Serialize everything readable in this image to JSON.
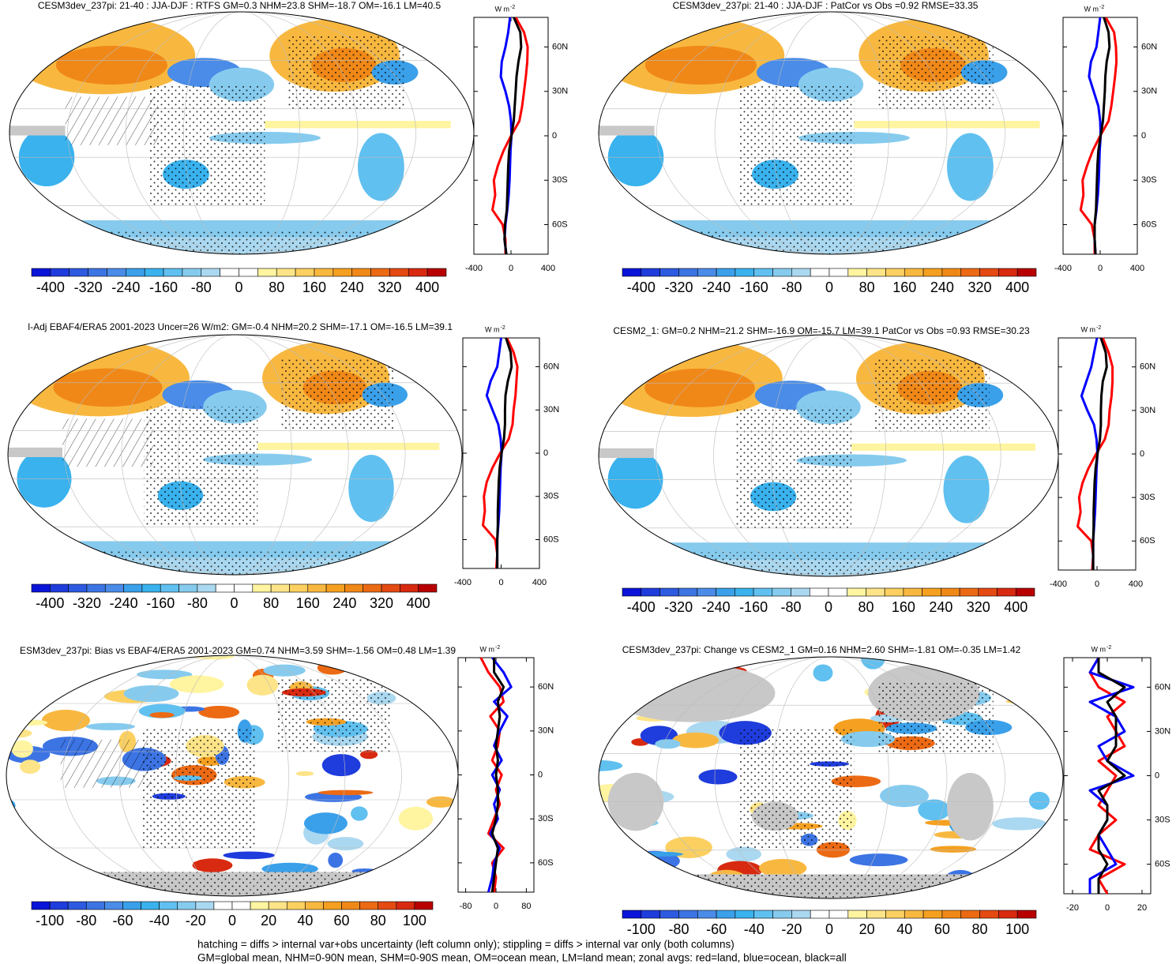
{
  "palette": [
    "#0a14d8",
    "#1f3cdc",
    "#2d5ae0",
    "#3c74e4",
    "#4a8ce8",
    "#3aa0ea",
    "#39b2ee",
    "#60c0f0",
    "#86cbee",
    "#aad8f0",
    "#ffffff",
    "#ffffff",
    "#fff4a0",
    "#fde488",
    "#fbd060",
    "#f8b840",
    "#f5a020",
    "#f08818",
    "#ec6a14",
    "#e44a12",
    "#d82a10",
    "#b80000"
  ],
  "chart_data": [
    {
      "type": "mapzonal",
      "title": "CESM3dev_237pi: 21-40 : JJA-DJF : RTFS GM=0.3 NHM=23.8 SHM=-18.7 OM=-16.1 LM=40.5",
      "units": "W m",
      "units_exp": "-2",
      "lat": [
        -80,
        -70,
        -60,
        -50,
        -40,
        -30,
        -20,
        -10,
        0,
        10,
        20,
        30,
        40,
        50,
        60,
        70,
        80
      ],
      "series": [
        {
          "color": "#ff0000",
          "values": [
            -60,
            -60,
            -90,
            -200,
            -170,
            -185,
            -140,
            -80,
            0,
            90,
            120,
            140,
            160,
            175,
            180,
            140,
            50
          ]
        },
        {
          "color": "#0000ff",
          "values": [
            -50,
            -70,
            -60,
            -40,
            -25,
            -15,
            -10,
            -5,
            5,
            0,
            -20,
            -60,
            -110,
            -100,
            -60,
            -30,
            -10
          ]
        },
        {
          "color": "#000000",
          "values": [
            -50,
            -70,
            -65,
            -45,
            -40,
            -35,
            -30,
            -20,
            5,
            30,
            40,
            50,
            60,
            80,
            110,
            100,
            30
          ]
        }
      ],
      "xlim": [
        -400,
        400
      ],
      "xticks": [
        -400,
        0,
        400
      ],
      "ylim": [
        -80,
        80
      ],
      "yticks": [
        {
          "value": 60,
          "label": "60N"
        },
        {
          "value": 30,
          "label": "30N"
        },
        0,
        {
          "value": -30,
          "label": "30S"
        },
        {
          "value": -60,
          "label": "60S"
        }
      ],
      "colorbar_ticks": [
        -400,
        -320,
        -240,
        -160,
        -80,
        0,
        80,
        160,
        240,
        320,
        400
      ]
    },
    {
      "type": "mapzonal",
      "title": "CESM3dev_237pi: 21-40 : JJA-DJF : PatCor vs Obs =0.92 RMSE=33.35",
      "units": "W m",
      "units_exp": "-2",
      "lat": [
        -80,
        -70,
        -60,
        -50,
        -40,
        -30,
        -20,
        -10,
        0,
        10,
        20,
        30,
        40,
        50,
        60,
        70,
        80
      ],
      "series": [
        {
          "color": "#ff0000",
          "values": [
            -60,
            -60,
            -90,
            -210,
            -180,
            -190,
            -140,
            -80,
            0,
            90,
            120,
            140,
            160,
            175,
            170,
            150,
            60
          ]
        },
        {
          "color": "#0000ff",
          "values": [
            -50,
            -60,
            -60,
            -40,
            -25,
            -15,
            -10,
            -5,
            5,
            0,
            -20,
            -70,
            -120,
            -100,
            -40,
            -20,
            0
          ]
        },
        {
          "color": "#000000",
          "values": [
            -50,
            -60,
            -60,
            -45,
            -40,
            -35,
            -30,
            -20,
            5,
            30,
            40,
            50,
            55,
            70,
            100,
            90,
            40
          ]
        }
      ],
      "xlim": [
        -400,
        400
      ],
      "xticks": [
        -400,
        0,
        400
      ],
      "ylim": [
        -80,
        80
      ],
      "yticks": [
        {
          "value": 60,
          "label": "60N"
        },
        {
          "value": 30,
          "label": "30N"
        },
        0,
        {
          "value": -30,
          "label": "30S"
        },
        {
          "value": -60,
          "label": "60S"
        }
      ],
      "colorbar_ticks": [
        -400,
        -320,
        -240,
        -160,
        -80,
        0,
        80,
        160,
        240,
        320,
        400
      ]
    },
    {
      "type": "mapzonal",
      "title": "l-Adj EBAF4/ERA5 2001-2023 Uncer=26 W/m2: GM=-0.4 NHM=20.2 SHM=-17.1 OM=-16.5 LM=39.1",
      "units": "W m",
      "units_exp": "-2",
      "lat": [
        -80,
        -70,
        -60,
        -50,
        -40,
        -30,
        -20,
        -10,
        0,
        10,
        20,
        30,
        40,
        50,
        60,
        70,
        80
      ],
      "series": [
        {
          "color": "#ff0000",
          "values": [
            -50,
            -40,
            -60,
            -190,
            -170,
            -180,
            -150,
            -90,
            -10,
            80,
            120,
            130,
            150,
            160,
            170,
            130,
            60
          ]
        },
        {
          "color": "#0000ff",
          "values": [
            -40,
            -40,
            -40,
            -30,
            -20,
            -15,
            -10,
            -5,
            5,
            -5,
            -30,
            -90,
            -150,
            -110,
            -40,
            -20,
            0
          ]
        },
        {
          "color": "#000000",
          "values": [
            -40,
            -40,
            -40,
            -35,
            -35,
            -30,
            -25,
            -15,
            5,
            30,
            40,
            40,
            45,
            70,
            110,
            100,
            50
          ]
        }
      ],
      "xlim": [
        -400,
        400
      ],
      "xticks": [
        -400,
        0,
        400
      ],
      "ylim": [
        -80,
        80
      ],
      "yticks": [
        {
          "value": 60,
          "label": "60N"
        },
        {
          "value": 30,
          "label": "30N"
        },
        0,
        {
          "value": -30,
          "label": "30S"
        },
        {
          "value": -60,
          "label": "60S"
        }
      ],
      "colorbar_ticks": [
        -400,
        -320,
        -240,
        -160,
        -80,
        0,
        80,
        160,
        240,
        320,
        400
      ]
    },
    {
      "type": "mapzonal",
      "title": "CESM2_1: GM=0.2 NHM=21.2 SHM=-16.9 OM=-15.7 LM=39.1 PatCor vs Obs =0.93 RMSE=30.23",
      "units": "W m",
      "units_exp": "-2",
      "lat": [
        -80,
        -70,
        -60,
        -50,
        -40,
        -30,
        -20,
        -10,
        0,
        10,
        20,
        30,
        40,
        50,
        60,
        70,
        80
      ],
      "series": [
        {
          "color": "#ff0000",
          "values": [
            -50,
            -40,
            -60,
            -200,
            -170,
            -185,
            -150,
            -90,
            -10,
            80,
            120,
            130,
            150,
            160,
            160,
            120,
            60
          ]
        },
        {
          "color": "#0000ff",
          "values": [
            -40,
            -40,
            -40,
            -30,
            -20,
            -15,
            -10,
            -5,
            5,
            -5,
            -30,
            -100,
            -160,
            -110,
            -60,
            -30,
            0
          ]
        },
        {
          "color": "#000000",
          "values": [
            -40,
            -40,
            -40,
            -35,
            -35,
            -30,
            -25,
            -15,
            5,
            30,
            40,
            40,
            45,
            60,
            100,
            90,
            40
          ]
        }
      ],
      "xlim": [
        -400,
        400
      ],
      "xticks": [
        -400,
        0,
        400
      ],
      "ylim": [
        -80,
        80
      ],
      "yticks": [
        {
          "value": 60,
          "label": "60N"
        },
        {
          "value": 30,
          "label": "30N"
        },
        0,
        {
          "value": -30,
          "label": "30S"
        },
        {
          "value": -60,
          "label": "60S"
        }
      ],
      "colorbar_ticks": [
        -400,
        -320,
        -240,
        -160,
        -80,
        0,
        80,
        160,
        240,
        320,
        400
      ]
    },
    {
      "type": "mapzonal",
      "title": "ESM3dev_237pi: Bias vs EBAF4/ERA5 2001-2023 GM=0.74 NHM=3.59 SHM=-1.56 OM=0.48 LM=1.39",
      "units": "W m",
      "units_exp": "-2",
      "lat": [
        -80,
        -70,
        -60,
        -50,
        -40,
        -30,
        -20,
        -10,
        0,
        10,
        20,
        30,
        40,
        50,
        60,
        70,
        80
      ],
      "series": [
        {
          "color": "#ff0000",
          "values": [
            -5,
            0,
            -10,
            20,
            -20,
            -5,
            10,
            0,
            15,
            -10,
            5,
            10,
            -15,
            20,
            10,
            -20,
            -40
          ]
        },
        {
          "color": "#0000ff",
          "values": [
            -20,
            -10,
            -5,
            10,
            -15,
            5,
            -5,
            10,
            -10,
            15,
            -5,
            10,
            30,
            -5,
            40,
            20,
            -10
          ]
        },
        {
          "color": "#000000",
          "values": [
            -10,
            -5,
            0,
            5,
            -10,
            0,
            5,
            5,
            0,
            5,
            0,
            5,
            10,
            5,
            20,
            -5,
            -5
          ]
        }
      ],
      "xlim": [
        -100,
        100
      ],
      "xticks": [
        -80,
        0,
        80
      ],
      "ylim": [
        -80,
        80
      ],
      "yticks": [
        {
          "value": 60,
          "label": "60N"
        },
        {
          "value": 30,
          "label": "30N"
        },
        0,
        {
          "value": -30,
          "label": "30S"
        },
        {
          "value": -60,
          "label": "60S"
        }
      ],
      "colorbar_ticks": [
        -100,
        -80,
        -60,
        -40,
        -20,
        0,
        20,
        40,
        60,
        80,
        100
      ]
    },
    {
      "type": "mapzonal",
      "title": "CESM3dev_237pi: Change vs CESM2_1 GM=0.16 NHM=2.60 SHM=-1.81 OM=-0.35 LM=1.42",
      "units": "W m",
      "units_exp": "-2",
      "lat": [
        -80,
        -70,
        -60,
        -50,
        -40,
        -30,
        -20,
        -10,
        0,
        10,
        20,
        30,
        40,
        50,
        60,
        70,
        80
      ],
      "series": [
        {
          "color": "#ff0000",
          "values": [
            0,
            -5,
            10,
            -10,
            -5,
            5,
            -5,
            0,
            5,
            -5,
            10,
            5,
            0,
            10,
            -5,
            -10,
            -5
          ]
        },
        {
          "color": "#0000ff",
          "values": [
            -10,
            -10,
            5,
            0,
            -5,
            0,
            0,
            -10,
            15,
            0,
            -5,
            10,
            5,
            -10,
            15,
            -10,
            -5
          ]
        },
        {
          "color": "#000000",
          "values": [
            -5,
            -5,
            0,
            -5,
            -5,
            0,
            0,
            -5,
            10,
            0,
            5,
            5,
            5,
            0,
            10,
            -5,
            -5
          ]
        }
      ],
      "xlim": [
        -25,
        25
      ],
      "xticks": [
        -20,
        0,
        20
      ],
      "ylim": [
        -80,
        80
      ],
      "yticks": [
        {
          "value": 60,
          "label": "60N"
        },
        {
          "value": 30,
          "label": "30N"
        },
        0,
        {
          "value": -30,
          "label": "30S"
        },
        {
          "value": -60,
          "label": "60S"
        }
      ],
      "colorbar_ticks": [
        -100,
        -80,
        -60,
        -40,
        -20,
        0,
        20,
        40,
        60,
        80,
        100
      ]
    }
  ],
  "footnote": [
    "hatching = diffs > internal var+obs uncertainty (left column only); stippling = diffs > internal var only (both columns)",
    "GM=global mean, NHM=0-90N mean, SHM=0-90S mean, OM=ocean mean, LM=land mean; zonal avgs: red=land, blue=ocean, black=all"
  ]
}
